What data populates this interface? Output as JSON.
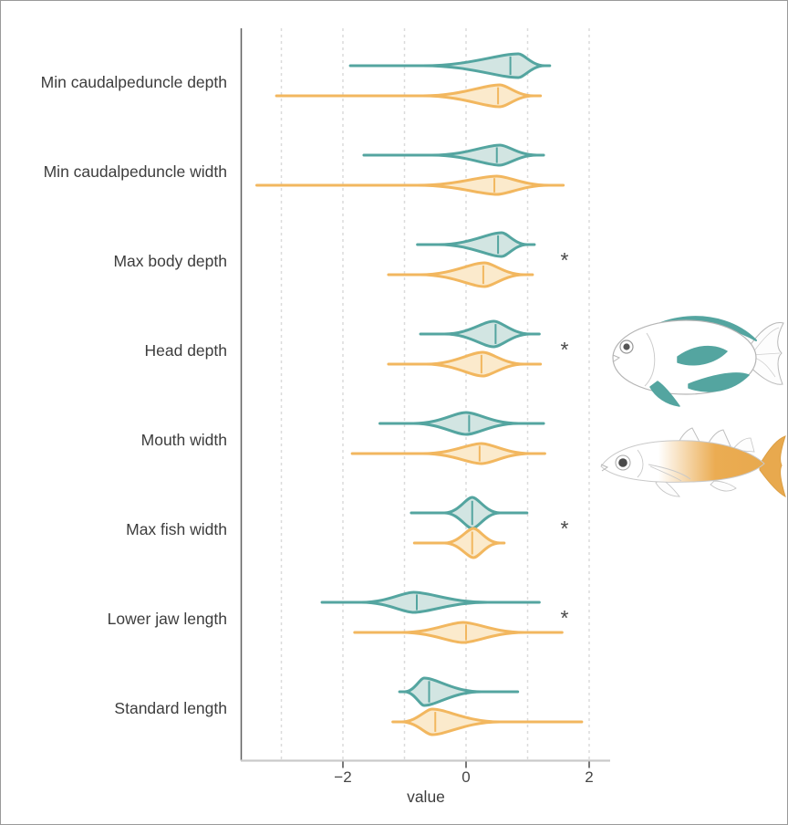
{
  "figure": {
    "significance_marker": "*"
  },
  "colors": {
    "teal": "#54A5A0",
    "teal_fill": "#D2E5E2",
    "orange": "#F2B75F",
    "orange_fill": "#FBEACC",
    "grid": "#DBDBDB",
    "axis_line": "#C9C9C9",
    "spine": "#5E5E5E",
    "tick": "#4a4a4a",
    "text": "#3d3d3d"
  },
  "chart_data": {
    "type": "violin",
    "orientation": "horizontal",
    "title": "",
    "xlabel": "value",
    "xlim": [
      -3.65,
      2.35
    ],
    "grid": "dashed-vertical",
    "gridlines": [
      -3,
      -2,
      -1,
      0,
      1,
      2
    ],
    "x_ticks": [
      {
        "value": -2,
        "label": "−2"
      },
      {
        "value": 0,
        "label": "0"
      },
      {
        "value": 2,
        "label": "2"
      }
    ],
    "series_names": [
      "deep-bodied (teal)",
      "slender (orange)"
    ],
    "legend": "fish silhouettes at right identify the two groups",
    "categories": [
      {
        "label": "Min caudalpeduncle depth",
        "significant": false,
        "teal": {
          "min": -1.88,
          "max": 1.36,
          "mode": 0.85,
          "median": 0.72,
          "bulge": [
            -0.7,
            1.28
          ],
          "halfwidth": 13
        },
        "orange": {
          "min": -3.08,
          "max": 1.21,
          "mode": 0.55,
          "median": 0.52,
          "bulge": [
            -0.7,
            1.1
          ],
          "halfwidth": 12
        }
      },
      {
        "label": "Min caudalpeduncle width",
        "significant": false,
        "teal": {
          "min": -1.66,
          "max": 1.26,
          "mode": 0.55,
          "median": 0.5,
          "bulge": [
            -0.55,
            1.15
          ],
          "halfwidth": 11
        },
        "orange": {
          "min": -3.4,
          "max": 1.58,
          "mode": 0.5,
          "median": 0.46,
          "bulge": [
            -0.8,
            1.35
          ],
          "halfwidth": 10
        }
      },
      {
        "label": "Max body depth",
        "significant": true,
        "teal": {
          "min": -0.79,
          "max": 1.11,
          "mode": 0.58,
          "median": 0.52,
          "bulge": [
            -0.45,
            1.0
          ],
          "halfwidth": 13
        },
        "orange": {
          "min": -1.26,
          "max": 1.08,
          "mode": 0.3,
          "median": 0.28,
          "bulge": [
            -0.75,
            0.95
          ],
          "halfwidth": 13
        }
      },
      {
        "label": "Head depth",
        "significant": true,
        "teal": {
          "min": -0.74,
          "max": 1.19,
          "mode": 0.45,
          "median": 0.48,
          "bulge": [
            -0.35,
            1.05
          ],
          "halfwidth": 14
        },
        "orange": {
          "min": -1.26,
          "max": 1.21,
          "mode": 0.27,
          "median": 0.25,
          "bulge": [
            -0.65,
            0.95
          ],
          "halfwidth": 13
        }
      },
      {
        "label": "Mouth width",
        "significant": false,
        "teal": {
          "min": -1.4,
          "max": 1.26,
          "mode": 0.0,
          "median": 0.05,
          "bulge": [
            -0.85,
            0.85
          ],
          "halfwidth": 12
        },
        "orange": {
          "min": -1.85,
          "max": 1.28,
          "mode": 0.25,
          "median": 0.22,
          "bulge": [
            -0.7,
            1.05
          ],
          "halfwidth": 11
        }
      },
      {
        "label": "Max fish width",
        "significant": true,
        "teal": {
          "min": -0.89,
          "max": 0.99,
          "mode": 0.1,
          "median": 0.1,
          "bulge": [
            -0.35,
            0.55
          ],
          "halfwidth": 17
        },
        "orange": {
          "min": -0.84,
          "max": 0.62,
          "mode": 0.12,
          "median": 0.1,
          "bulge": [
            -0.35,
            0.55
          ],
          "halfwidth": 16
        }
      },
      {
        "label": "Lower jaw length",
        "significant": true,
        "teal": {
          "min": -2.34,
          "max": 1.19,
          "mode": -0.85,
          "median": -0.8,
          "bulge": [
            -1.7,
            0.35
          ],
          "halfwidth": 11
        },
        "orange": {
          "min": -1.81,
          "max": 1.56,
          "mode": -0.05,
          "median": 0.0,
          "bulge": [
            -1.05,
            0.95
          ],
          "halfwidth": 11
        }
      },
      {
        "label": "Standard length",
        "significant": false,
        "teal": {
          "min": -1.08,
          "max": 0.84,
          "mode": -0.68,
          "median": -0.6,
          "bulge": [
            -1.0,
            0.25
          ],
          "halfwidth": 15
        },
        "orange": {
          "min": -1.19,
          "max": 1.88,
          "mode": -0.55,
          "median": -0.5,
          "bulge": [
            -1.05,
            0.55
          ],
          "halfwidth": 14
        }
      }
    ]
  }
}
